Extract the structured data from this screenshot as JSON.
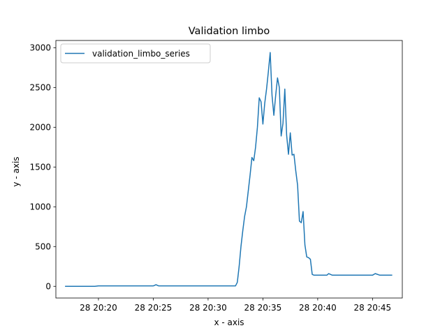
{
  "chart_data": {
    "type": "line",
    "title": "Validation limbo",
    "xlabel": "x - axis",
    "ylabel": "y - axis",
    "x_ticks": [
      "28 20:20",
      "28 20:25",
      "28 20:30",
      "28 20:35",
      "28 20:40",
      "28 20:45"
    ],
    "y_ticks": [
      "0",
      "500",
      "1000",
      "1500",
      "2000",
      "2500",
      "3000"
    ],
    "xlim": [
      "28 20:16:07",
      "28 20:47:43"
    ],
    "ylim": [
      -147,
      3091
    ],
    "legend": {
      "position": "upper left"
    },
    "grid": false,
    "series": [
      {
        "name": "validation_limbo_series",
        "color": "#1f77b4",
        "x": [
          "28 20:17:00",
          "28 20:19:40",
          "28 20:20:00",
          "28 20:25:00",
          "28 20:25:15",
          "28 20:25:30",
          "28 20:32:30",
          "28 20:32:40",
          "28 20:32:50",
          "28 20:33:00",
          "28 20:33:10",
          "28 20:33:20",
          "28 20:33:30",
          "28 20:33:40",
          "28 20:33:50",
          "28 20:34:00",
          "28 20:34:10",
          "28 20:34:20",
          "28 20:34:30",
          "28 20:34:40",
          "28 20:34:50",
          "28 20:35:00",
          "28 20:35:10",
          "28 20:35:20",
          "28 20:35:30",
          "28 20:35:40",
          "28 20:35:50",
          "28 20:36:00",
          "28 20:36:10",
          "28 20:36:20",
          "28 20:36:30",
          "28 20:36:40",
          "28 20:36:50",
          "28 20:37:00",
          "28 20:37:10",
          "28 20:37:20",
          "28 20:37:30",
          "28 20:37:40",
          "28 20:37:50",
          "28 20:38:00",
          "28 20:38:10",
          "28 20:38:20",
          "28 20:38:30",
          "28 20:38:40",
          "28 20:38:50",
          "28 20:39:00",
          "28 20:39:10",
          "28 20:39:20",
          "28 20:39:30",
          "28 20:39:40",
          "28 20:39:50",
          "28 20:40:00",
          "28 20:40:50",
          "28 20:41:00",
          "28 20:41:20",
          "28 20:45:00",
          "28 20:45:15",
          "28 20:45:40",
          "28 20:46:45"
        ],
        "y": [
          0,
          0,
          5,
          5,
          20,
          5,
          5,
          50,
          250,
          500,
          700,
          880,
          1000,
          1200,
          1400,
          1620,
          1580,
          1750,
          2000,
          2370,
          2320,
          2040,
          2300,
          2480,
          2700,
          2940,
          2400,
          2150,
          2400,
          2620,
          2500,
          1890,
          2050,
          2480,
          1900,
          1660,
          1930,
          1650,
          1660,
          1450,
          1270,
          820,
          800,
          940,
          520,
          370,
          360,
          340,
          150,
          140,
          140,
          140,
          140,
          160,
          140,
          140,
          160,
          140,
          140
        ]
      }
    ]
  }
}
